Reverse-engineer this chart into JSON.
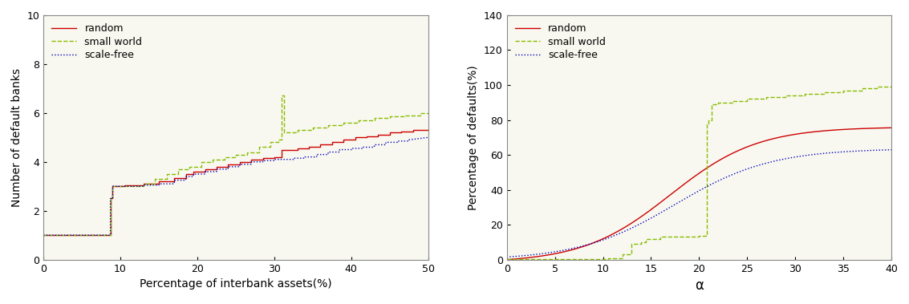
{
  "left": {
    "xlabel": "Percentage of interbank assets(%)",
    "ylabel": "Number of default banks",
    "xlim": [
      0,
      50
    ],
    "ylim": [
      0,
      10
    ],
    "xticks": [
      0,
      10,
      20,
      30,
      40,
      50
    ],
    "yticks": [
      0,
      2,
      4,
      6,
      8,
      10
    ],
    "random_color": "#cc0000",
    "small_world_color": "#88bb00",
    "scale_free_color": "#0000bb",
    "random_style": "-",
    "small_world_style": "--",
    "scale_free_style": ":"
  },
  "right": {
    "xlabel": "α",
    "ylabel": "Percentage of defaults(%)",
    "xlim": [
      0,
      40
    ],
    "ylim": [
      0,
      140
    ],
    "xticks": [
      0,
      5,
      10,
      15,
      20,
      25,
      30,
      35,
      40
    ],
    "yticks": [
      0,
      20,
      40,
      60,
      80,
      100,
      120,
      140
    ],
    "random_color": "#cc0000",
    "small_world_color": "#88bb00",
    "scale_free_color": "#0000bb",
    "random_style": "-",
    "small_world_style": "--",
    "scale_free_style": ":"
  }
}
